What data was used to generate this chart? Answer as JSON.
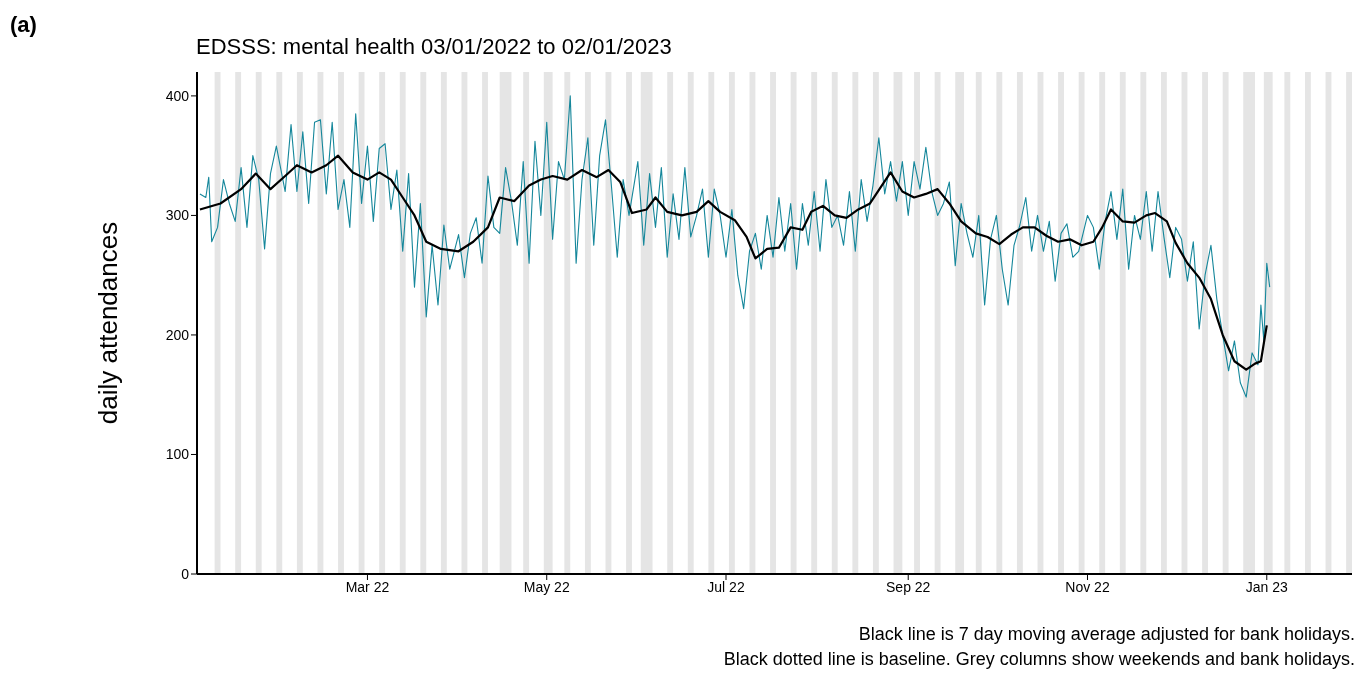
{
  "chart_data": {
    "type": "line",
    "title": "EDSSS: mental health 03/01/2022 to 02/01/2023",
    "ylabel": "daily attendances",
    "annotations": [
      "(a)",
      "Black line is 7 day moving average adjusted for bank holidays.",
      "Black dotted line is baseline. Grey columns show weekends and bank holidays."
    ],
    "xlim": [
      "2022-01-02",
      "2023-01-30"
    ],
    "xticks": [
      {
        "value": "2022-03-01",
        "label": "Mar 22"
      },
      {
        "value": "2022-05-01",
        "label": "May 22"
      },
      {
        "value": "2022-07-01",
        "label": "Jul 22"
      },
      {
        "value": "2022-09-01",
        "label": "Sep 22"
      },
      {
        "value": "2022-11-01",
        "label": "Nov 22"
      },
      {
        "value": "2023-01-01",
        "label": "Jan 23"
      }
    ],
    "ylim": [
      0,
      420
    ],
    "yticks": [
      0,
      100,
      200,
      300,
      400
    ],
    "series": [
      {
        "color": "#15879b",
        "x": [
          "2022-01-03",
          "2022-01-05",
          "2022-01-06",
          "2022-01-07",
          "2022-01-09",
          "2022-01-11",
          "2022-01-13",
          "2022-01-15",
          "2022-01-17",
          "2022-01-19",
          "2022-01-21",
          "2022-01-23",
          "2022-01-25",
          "2022-01-27",
          "2022-01-29",
          "2022-02-01",
          "2022-02-03",
          "2022-02-05",
          "2022-02-07",
          "2022-02-09",
          "2022-02-11",
          "2022-02-13",
          "2022-02-15",
          "2022-02-17",
          "2022-02-19",
          "2022-02-21",
          "2022-02-23",
          "2022-02-25",
          "2022-02-27",
          "2022-03-01",
          "2022-03-03",
          "2022-03-05",
          "2022-03-07",
          "2022-03-09",
          "2022-03-11",
          "2022-03-13",
          "2022-03-15",
          "2022-03-17",
          "2022-03-19",
          "2022-03-21",
          "2022-03-23",
          "2022-03-25",
          "2022-03-27",
          "2022-03-29",
          "2022-04-01",
          "2022-04-03",
          "2022-04-05",
          "2022-04-07",
          "2022-04-09",
          "2022-04-11",
          "2022-04-13",
          "2022-04-15",
          "2022-04-17",
          "2022-04-19",
          "2022-04-21",
          "2022-04-23",
          "2022-04-25",
          "2022-04-27",
          "2022-04-29",
          "2022-05-01",
          "2022-05-03",
          "2022-05-05",
          "2022-05-07",
          "2022-05-09",
          "2022-05-11",
          "2022-05-13",
          "2022-05-15",
          "2022-05-17",
          "2022-05-19",
          "2022-05-21",
          "2022-05-23",
          "2022-05-25",
          "2022-05-27",
          "2022-05-29",
          "2022-06-01",
          "2022-06-03",
          "2022-06-05",
          "2022-06-07",
          "2022-06-09",
          "2022-06-11",
          "2022-06-13",
          "2022-06-15",
          "2022-06-17",
          "2022-06-19",
          "2022-06-21",
          "2022-06-23",
          "2022-06-25",
          "2022-06-27",
          "2022-06-29",
          "2022-07-01",
          "2022-07-03",
          "2022-07-05",
          "2022-07-07",
          "2022-07-09",
          "2022-07-11",
          "2022-07-13",
          "2022-07-15",
          "2022-07-17",
          "2022-07-19",
          "2022-07-21",
          "2022-07-23",
          "2022-07-25",
          "2022-07-27",
          "2022-07-29",
          "2022-07-31",
          "2022-08-02",
          "2022-08-04",
          "2022-08-06",
          "2022-08-08",
          "2022-08-10",
          "2022-08-12",
          "2022-08-14",
          "2022-08-16",
          "2022-08-18",
          "2022-08-20",
          "2022-08-22",
          "2022-08-24",
          "2022-08-26",
          "2022-08-28",
          "2022-08-30",
          "2022-09-01",
          "2022-09-03",
          "2022-09-05",
          "2022-09-07",
          "2022-09-09",
          "2022-09-11",
          "2022-09-13",
          "2022-09-15",
          "2022-09-17",
          "2022-09-19",
          "2022-09-21",
          "2022-09-23",
          "2022-09-25",
          "2022-09-27",
          "2022-09-29",
          "2022-10-01",
          "2022-10-03",
          "2022-10-05",
          "2022-10-07",
          "2022-10-09",
          "2022-10-11",
          "2022-10-13",
          "2022-10-15",
          "2022-10-17",
          "2022-10-19",
          "2022-10-21",
          "2022-10-23",
          "2022-10-25",
          "2022-10-27",
          "2022-10-29",
          "2022-11-01",
          "2022-11-03",
          "2022-11-05",
          "2022-11-07",
          "2022-11-09",
          "2022-11-11",
          "2022-11-13",
          "2022-11-15",
          "2022-11-17",
          "2022-11-19",
          "2022-11-21",
          "2022-11-23",
          "2022-11-25",
          "2022-11-27",
          "2022-11-29",
          "2022-12-01",
          "2022-12-03",
          "2022-12-05",
          "2022-12-07",
          "2022-12-09",
          "2022-12-11",
          "2022-12-13",
          "2022-12-15",
          "2022-12-17",
          "2022-12-19",
          "2022-12-21",
          "2022-12-23",
          "2022-12-25",
          "2022-12-27",
          "2022-12-29",
          "2022-12-30",
          "2022-12-31",
          "2023-01-01",
          "2023-01-02"
        ],
        "values": [
          318,
          315,
          332,
          278,
          290,
          330,
          310,
          295,
          340,
          290,
          350,
          330,
          272,
          335,
          358,
          320,
          376,
          320,
          370,
          310,
          378,
          380,
          318,
          378,
          305,
          330,
          290,
          385,
          310,
          358,
          295,
          356,
          360,
          305,
          338,
          270,
          335,
          240,
          310,
          215,
          275,
          225,
          292,
          255,
          284,
          248,
          285,
          298,
          260,
          333,
          290,
          285,
          340,
          312,
          275,
          345,
          260,
          362,
          300,
          378,
          280,
          345,
          330,
          400,
          260,
          330,
          365,
          275,
          350,
          380,
          325,
          265,
          330,
          300,
          345,
          275,
          335,
          290,
          340,
          265,
          318,
          280,
          340,
          282,
          300,
          322,
          265,
          322,
          300,
          265,
          305,
          250,
          222,
          270,
          285,
          255,
          300,
          265,
          315,
          270,
          310,
          255,
          310,
          275,
          320,
          270,
          330,
          290,
          300,
          275,
          320,
          270,
          330,
          295,
          325,
          365,
          318,
          345,
          312,
          345,
          300,
          345,
          322,
          357,
          320,
          300,
          310,
          328,
          258,
          310,
          285,
          265,
          300,
          225,
          280,
          300,
          255,
          225,
          275,
          292,
          315,
          270,
          300,
          270,
          295,
          245,
          285,
          293,
          265,
          270,
          300,
          290,
          255,
          295,
          320,
          280,
          322,
          255,
          300,
          280,
          320,
          270,
          320,
          282,
          248,
          290,
          280,
          245,
          278,
          205,
          250,
          275,
          230,
          200,
          170,
          195,
          160,
          148,
          185,
          175,
          225,
          195,
          260,
          240
        ]
      },
      {
        "color": "#000000",
        "x": [
          "2022-01-03",
          "2022-01-10",
          "2022-01-17",
          "2022-01-22",
          "2022-01-27",
          "2022-02-01",
          "2022-02-05",
          "2022-02-10",
          "2022-02-15",
          "2022-02-19",
          "2022-02-24",
          "2022-03-01",
          "2022-03-05",
          "2022-03-09",
          "2022-03-13",
          "2022-03-17",
          "2022-03-21",
          "2022-03-26",
          "2022-04-01",
          "2022-04-06",
          "2022-04-11",
          "2022-04-15",
          "2022-04-20",
          "2022-04-25",
          "2022-04-29",
          "2022-05-03",
          "2022-05-08",
          "2022-05-13",
          "2022-05-18",
          "2022-05-22",
          "2022-05-26",
          "2022-05-30",
          "2022-06-04",
          "2022-06-07",
          "2022-06-11",
          "2022-06-16",
          "2022-06-21",
          "2022-06-25",
          "2022-06-29",
          "2022-07-04",
          "2022-07-08",
          "2022-07-11",
          "2022-07-15",
          "2022-07-19",
          "2022-07-23",
          "2022-07-27",
          "2022-07-30",
          "2022-08-03",
          "2022-08-07",
          "2022-08-11",
          "2022-08-15",
          "2022-08-19",
          "2022-08-23",
          "2022-08-26",
          "2022-08-30",
          "2022-09-03",
          "2022-09-07",
          "2022-09-11",
          "2022-09-15",
          "2022-09-19",
          "2022-09-24",
          "2022-09-28",
          "2022-10-02",
          "2022-10-06",
          "2022-10-10",
          "2022-10-14",
          "2022-10-18",
          "2022-10-22",
          "2022-10-26",
          "2022-10-30",
          "2022-11-03",
          "2022-11-06",
          "2022-11-09",
          "2022-11-13",
          "2022-11-17",
          "2022-11-21",
          "2022-11-24",
          "2022-11-28",
          "2022-12-01",
          "2022-12-05",
          "2022-12-09",
          "2022-12-13",
          "2022-12-17",
          "2022-12-21",
          "2022-12-25",
          "2022-12-28",
          "2022-12-30",
          "2023-01-01"
        ],
        "values": [
          305,
          310,
          322,
          335,
          322,
          333,
          342,
          336,
          342,
          350,
          336,
          330,
          336,
          330,
          315,
          300,
          278,
          272,
          270,
          278,
          290,
          315,
          312,
          325,
          330,
          333,
          330,
          338,
          332,
          338,
          328,
          302,
          305,
          315,
          303,
          300,
          303,
          312,
          303,
          296,
          282,
          264,
          272,
          273,
          290,
          288,
          303,
          308,
          300,
          298,
          305,
          310,
          325,
          336,
          320,
          315,
          318,
          322,
          310,
          295,
          285,
          282,
          276,
          284,
          290,
          290,
          283,
          278,
          280,
          275,
          278,
          290,
          305,
          295,
          294,
          300,
          302,
          295,
          277,
          260,
          248,
          230,
          200,
          178,
          171,
          176,
          178,
          208
        ]
      }
    ],
    "bands": [
      {
        "axis": "x",
        "from": "2022-01-08",
        "to": "2022-01-10",
        "color": "#e5e5e5"
      },
      {
        "axis": "x",
        "from": "2022-01-15",
        "to": "2022-01-17",
        "color": "#e5e5e5"
      },
      {
        "axis": "x",
        "from": "2022-01-22",
        "to": "2022-01-24",
        "color": "#e5e5e5"
      },
      {
        "axis": "x",
        "from": "2022-01-29",
        "to": "2022-01-31",
        "color": "#e5e5e5"
      },
      {
        "axis": "x",
        "from": "2022-02-05",
        "to": "2022-02-07",
        "color": "#e5e5e5"
      },
      {
        "axis": "x",
        "from": "2022-02-12",
        "to": "2022-02-14",
        "color": "#e5e5e5"
      },
      {
        "axis": "x",
        "from": "2022-02-19",
        "to": "2022-02-21",
        "color": "#e5e5e5"
      },
      {
        "axis": "x",
        "from": "2022-02-26",
        "to": "2022-02-28",
        "color": "#e5e5e5"
      },
      {
        "axis": "x",
        "from": "2022-03-05",
        "to": "2022-03-07",
        "color": "#e5e5e5"
      },
      {
        "axis": "x",
        "from": "2022-03-12",
        "to": "2022-03-14",
        "color": "#e5e5e5"
      },
      {
        "axis": "x",
        "from": "2022-03-19",
        "to": "2022-03-21",
        "color": "#e5e5e5"
      },
      {
        "axis": "x",
        "from": "2022-03-26",
        "to": "2022-03-28",
        "color": "#e5e5e5"
      },
      {
        "axis": "x",
        "from": "2022-04-02",
        "to": "2022-04-04",
        "color": "#e5e5e5"
      },
      {
        "axis": "x",
        "from": "2022-04-09",
        "to": "2022-04-11",
        "color": "#e5e5e5"
      },
      {
        "axis": "x",
        "from": "2022-04-15",
        "to": "2022-04-19",
        "color": "#e5e5e5"
      },
      {
        "axis": "x",
        "from": "2022-04-23",
        "to": "2022-04-25",
        "color": "#e5e5e5"
      },
      {
        "axis": "x",
        "from": "2022-04-30",
        "to": "2022-05-03",
        "color": "#e5e5e5"
      },
      {
        "axis": "x",
        "from": "2022-05-07",
        "to": "2022-05-09",
        "color": "#e5e5e5"
      },
      {
        "axis": "x",
        "from": "2022-05-14",
        "to": "2022-05-16",
        "color": "#e5e5e5"
      },
      {
        "axis": "x",
        "from": "2022-05-21",
        "to": "2022-05-23",
        "color": "#e5e5e5"
      },
      {
        "axis": "x",
        "from": "2022-05-28",
        "to": "2022-05-30",
        "color": "#e5e5e5"
      },
      {
        "axis": "x",
        "from": "2022-06-02",
        "to": "2022-06-06",
        "color": "#e5e5e5"
      },
      {
        "axis": "x",
        "from": "2022-06-11",
        "to": "2022-06-13",
        "color": "#e5e5e5"
      },
      {
        "axis": "x",
        "from": "2022-06-18",
        "to": "2022-06-20",
        "color": "#e5e5e5"
      },
      {
        "axis": "x",
        "from": "2022-06-25",
        "to": "2022-06-27",
        "color": "#e5e5e5"
      },
      {
        "axis": "x",
        "from": "2022-07-02",
        "to": "2022-07-04",
        "color": "#e5e5e5"
      },
      {
        "axis": "x",
        "from": "2022-07-09",
        "to": "2022-07-11",
        "color": "#e5e5e5"
      },
      {
        "axis": "x",
        "from": "2022-07-16",
        "to": "2022-07-18",
        "color": "#e5e5e5"
      },
      {
        "axis": "x",
        "from": "2022-07-23",
        "to": "2022-07-25",
        "color": "#e5e5e5"
      },
      {
        "axis": "x",
        "from": "2022-07-30",
        "to": "2022-08-01",
        "color": "#e5e5e5"
      },
      {
        "axis": "x",
        "from": "2022-08-06",
        "to": "2022-08-08",
        "color": "#e5e5e5"
      },
      {
        "axis": "x",
        "from": "2022-08-13",
        "to": "2022-08-15",
        "color": "#e5e5e5"
      },
      {
        "axis": "x",
        "from": "2022-08-20",
        "to": "2022-08-22",
        "color": "#e5e5e5"
      },
      {
        "axis": "x",
        "from": "2022-08-27",
        "to": "2022-08-30",
        "color": "#e5e5e5"
      },
      {
        "axis": "x",
        "from": "2022-09-03",
        "to": "2022-09-05",
        "color": "#e5e5e5"
      },
      {
        "axis": "x",
        "from": "2022-09-10",
        "to": "2022-09-12",
        "color": "#e5e5e5"
      },
      {
        "axis": "x",
        "from": "2022-09-17",
        "to": "2022-09-20",
        "color": "#e5e5e5"
      },
      {
        "axis": "x",
        "from": "2022-09-24",
        "to": "2022-09-26",
        "color": "#e5e5e5"
      },
      {
        "axis": "x",
        "from": "2022-10-01",
        "to": "2022-10-03",
        "color": "#e5e5e5"
      },
      {
        "axis": "x",
        "from": "2022-10-08",
        "to": "2022-10-10",
        "color": "#e5e5e5"
      },
      {
        "axis": "x",
        "from": "2022-10-15",
        "to": "2022-10-17",
        "color": "#e5e5e5"
      },
      {
        "axis": "x",
        "from": "2022-10-22",
        "to": "2022-10-24",
        "color": "#e5e5e5"
      },
      {
        "axis": "x",
        "from": "2022-10-29",
        "to": "2022-10-31",
        "color": "#e5e5e5"
      },
      {
        "axis": "x",
        "from": "2022-11-05",
        "to": "2022-11-07",
        "color": "#e5e5e5"
      },
      {
        "axis": "x",
        "from": "2022-11-12",
        "to": "2022-11-14",
        "color": "#e5e5e5"
      },
      {
        "axis": "x",
        "from": "2022-11-19",
        "to": "2022-11-21",
        "color": "#e5e5e5"
      },
      {
        "axis": "x",
        "from": "2022-11-26",
        "to": "2022-11-28",
        "color": "#e5e5e5"
      },
      {
        "axis": "x",
        "from": "2022-12-03",
        "to": "2022-12-05",
        "color": "#e5e5e5"
      },
      {
        "axis": "x",
        "from": "2022-12-10",
        "to": "2022-12-12",
        "color": "#e5e5e5"
      },
      {
        "axis": "x",
        "from": "2022-12-17",
        "to": "2022-12-19",
        "color": "#e5e5e5"
      },
      {
        "axis": "x",
        "from": "2022-12-24",
        "to": "2022-12-28",
        "color": "#e5e5e5"
      },
      {
        "axis": "x",
        "from": "2022-12-31",
        "to": "2023-01-03",
        "color": "#e5e5e5"
      },
      {
        "axis": "x",
        "from": "2023-01-07",
        "to": "2023-01-09",
        "color": "#e5e5e5"
      },
      {
        "axis": "x",
        "from": "2023-01-14",
        "to": "2023-01-16",
        "color": "#e5e5e5"
      },
      {
        "axis": "x",
        "from": "2023-01-21",
        "to": "2023-01-23",
        "color": "#e5e5e5"
      },
      {
        "axis": "x",
        "from": "2023-01-28",
        "to": "2023-01-30",
        "color": "#e5e5e5"
      }
    ]
  }
}
